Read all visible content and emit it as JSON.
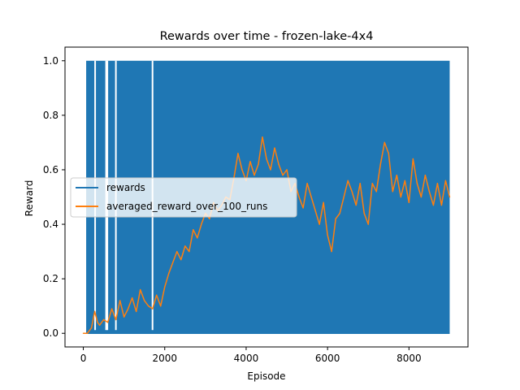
{
  "chart_data": {
    "type": "line",
    "title": "Rewards over time - frozen-lake-4x4",
    "xlabel": "Episode",
    "ylabel": "Reward",
    "xlim": [
      -450,
      9450
    ],
    "ylim": [
      -0.05,
      1.05
    ],
    "xticks": [
      0,
      2000,
      4000,
      6000,
      8000
    ],
    "yticks": [
      0.0,
      0.2,
      0.4,
      0.6,
      0.8,
      1.0
    ],
    "xtick_labels": [
      "0",
      "2000",
      "4000",
      "6000",
      "8000"
    ],
    "ytick_labels": [
      "0.0",
      "0.2",
      "0.4",
      "0.6",
      "0.8",
      "1.0"
    ],
    "grid": false,
    "legend_position": "center-left",
    "colors": {
      "rewards": "#1f77b4",
      "averaged": "#ff7f0e"
    },
    "series": [
      {
        "name": "rewards",
        "kind": "binary",
        "x_range": [
          0,
          9000
        ],
        "values_min": 0,
        "values_max": 1,
        "dense_from": 70,
        "gaps_at": [
          290,
          560,
          590,
          800,
          1700
        ]
      },
      {
        "name": "averaged_reward_over_100_runs",
        "x": [
          0,
          100,
          200,
          280,
          350,
          400,
          500,
          600,
          700,
          800,
          900,
          1000,
          1100,
          1200,
          1300,
          1400,
          1500,
          1600,
          1700,
          1800,
          1900,
          2000,
          2100,
          2200,
          2300,
          2400,
          2500,
          2600,
          2700,
          2800,
          2900,
          3000,
          3100,
          3200,
          3300,
          3400,
          3500,
          3600,
          3700,
          3800,
          3900,
          4000,
          4100,
          4200,
          4300,
          4400,
          4500,
          4600,
          4700,
          4800,
          4900,
          5000,
          5100,
          5200,
          5300,
          5400,
          5500,
          5600,
          5700,
          5800,
          5900,
          6000,
          6100,
          6200,
          6300,
          6400,
          6500,
          6600,
          6700,
          6800,
          6900,
          7000,
          7100,
          7200,
          7300,
          7400,
          7500,
          7600,
          7700,
          7800,
          7900,
          8000,
          8100,
          8200,
          8300,
          8400,
          8500,
          8600,
          8700,
          8800,
          8900,
          9000
        ],
        "values": [
          0.0,
          0.0,
          0.02,
          0.08,
          0.04,
          0.03,
          0.05,
          0.04,
          0.09,
          0.05,
          0.12,
          0.06,
          0.09,
          0.13,
          0.08,
          0.16,
          0.12,
          0.1,
          0.09,
          0.14,
          0.1,
          0.17,
          0.22,
          0.26,
          0.3,
          0.27,
          0.32,
          0.3,
          0.38,
          0.35,
          0.4,
          0.44,
          0.42,
          0.48,
          0.45,
          0.47,
          0.5,
          0.49,
          0.57,
          0.66,
          0.6,
          0.56,
          0.63,
          0.58,
          0.62,
          0.72,
          0.64,
          0.6,
          0.68,
          0.62,
          0.58,
          0.6,
          0.52,
          0.55,
          0.5,
          0.46,
          0.55,
          0.5,
          0.45,
          0.4,
          0.48,
          0.36,
          0.3,
          0.42,
          0.44,
          0.5,
          0.56,
          0.52,
          0.47,
          0.55,
          0.44,
          0.4,
          0.55,
          0.52,
          0.62,
          0.7,
          0.66,
          0.52,
          0.58,
          0.5,
          0.56,
          0.48,
          0.64,
          0.55,
          0.5,
          0.58,
          0.52,
          0.47,
          0.55,
          0.47,
          0.56,
          0.5
        ]
      }
    ]
  }
}
